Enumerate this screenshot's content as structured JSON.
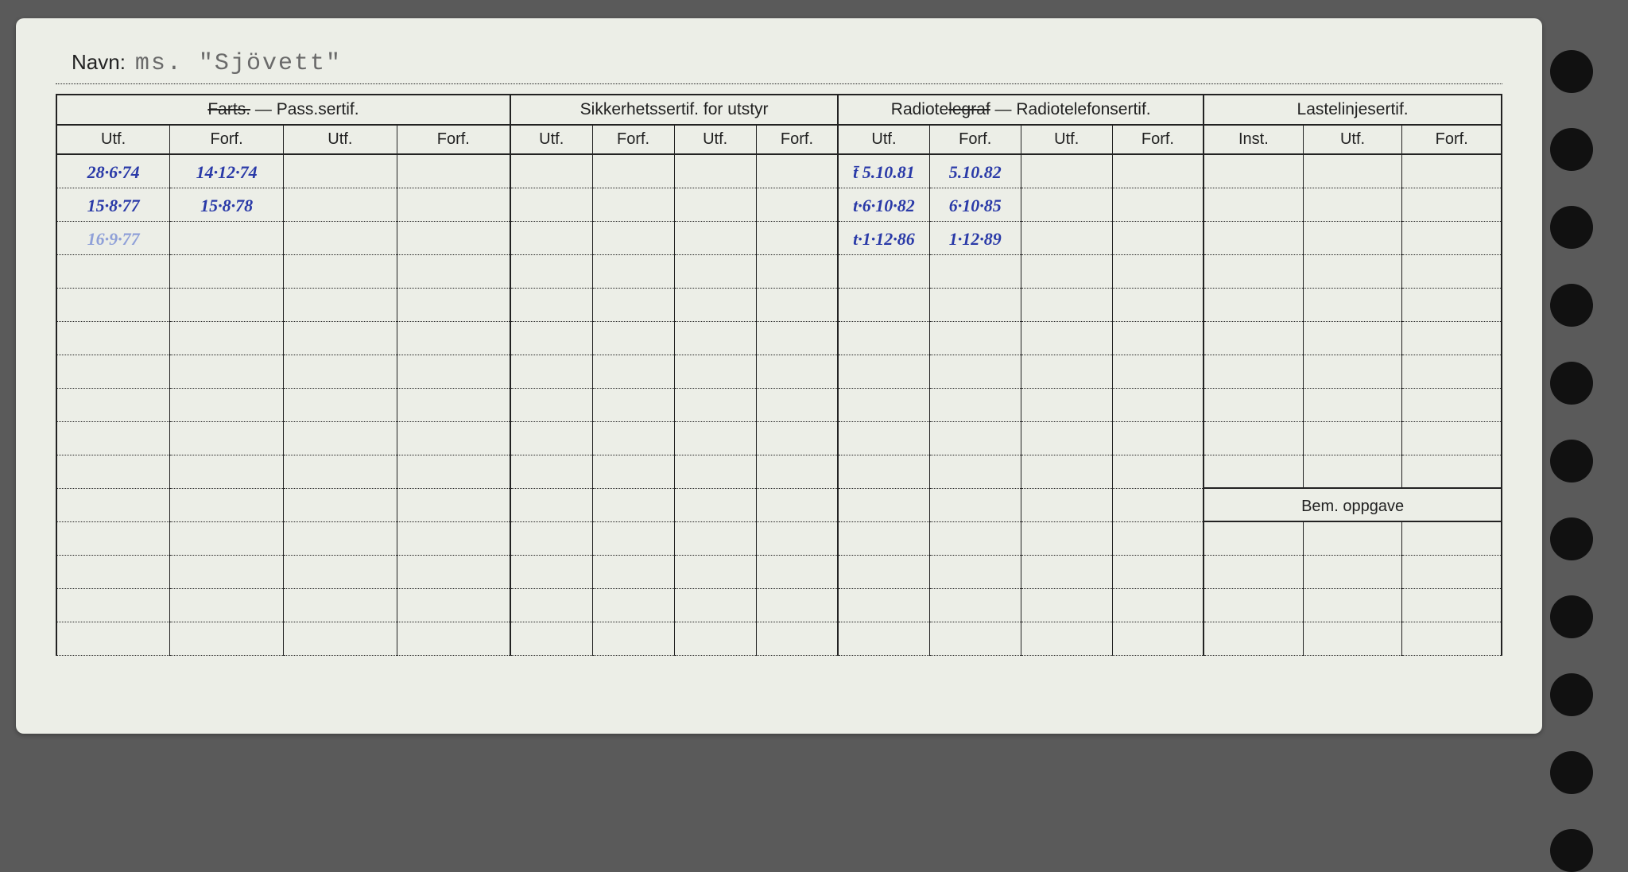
{
  "colors": {
    "paper": "#eceee7",
    "ink": "#222222",
    "pen_blue": "#2a3aa8",
    "pen_faint": "#8fa0d8",
    "hole": "#111111",
    "background": "#5a5a5a"
  },
  "header": {
    "name_label": "Navn:",
    "name_value": "ms.  \"Sjövett\""
  },
  "groups": [
    {
      "title_prefix_struck": "Farts.",
      "title_rest": " — Pass.sertif.",
      "subs": [
        "Utf.",
        "Forf.",
        "Utf.",
        "Forf."
      ]
    },
    {
      "title": "Sikkerhetssertif. for utstyr",
      "subs": [
        "Utf.",
        "Forf.",
        "Utf.",
        "Forf."
      ]
    },
    {
      "title_prefix": "Radiote",
      "title_strike": "legraf",
      "title_rest": " — Radiotelefonsertif.",
      "subs": [
        "Utf.",
        "Forf.",
        "Utf.",
        "Forf."
      ]
    },
    {
      "title": "Lastelinjesertif.",
      "subs": [
        "Inst.",
        "Utf.",
        "Forf."
      ]
    }
  ],
  "bem_label": "Bem. oppgave",
  "rows": {
    "row0": {
      "c0": "28·6·74",
      "c1": "14·12·74",
      "c8": "t̄ 5.10.81",
      "c9": "5.10.82"
    },
    "row1": {
      "c0": "15·8·77",
      "c1": "15·8·78",
      "c8": "t·6·10·82",
      "c9": "6·10·85"
    },
    "row2": {
      "c0_faint": "16·9·77",
      "c8": "t·1·12·86",
      "c9": "1·12·89"
    }
  },
  "num_data_rows": 15,
  "bem_row_index": 10,
  "hole_count": 11
}
